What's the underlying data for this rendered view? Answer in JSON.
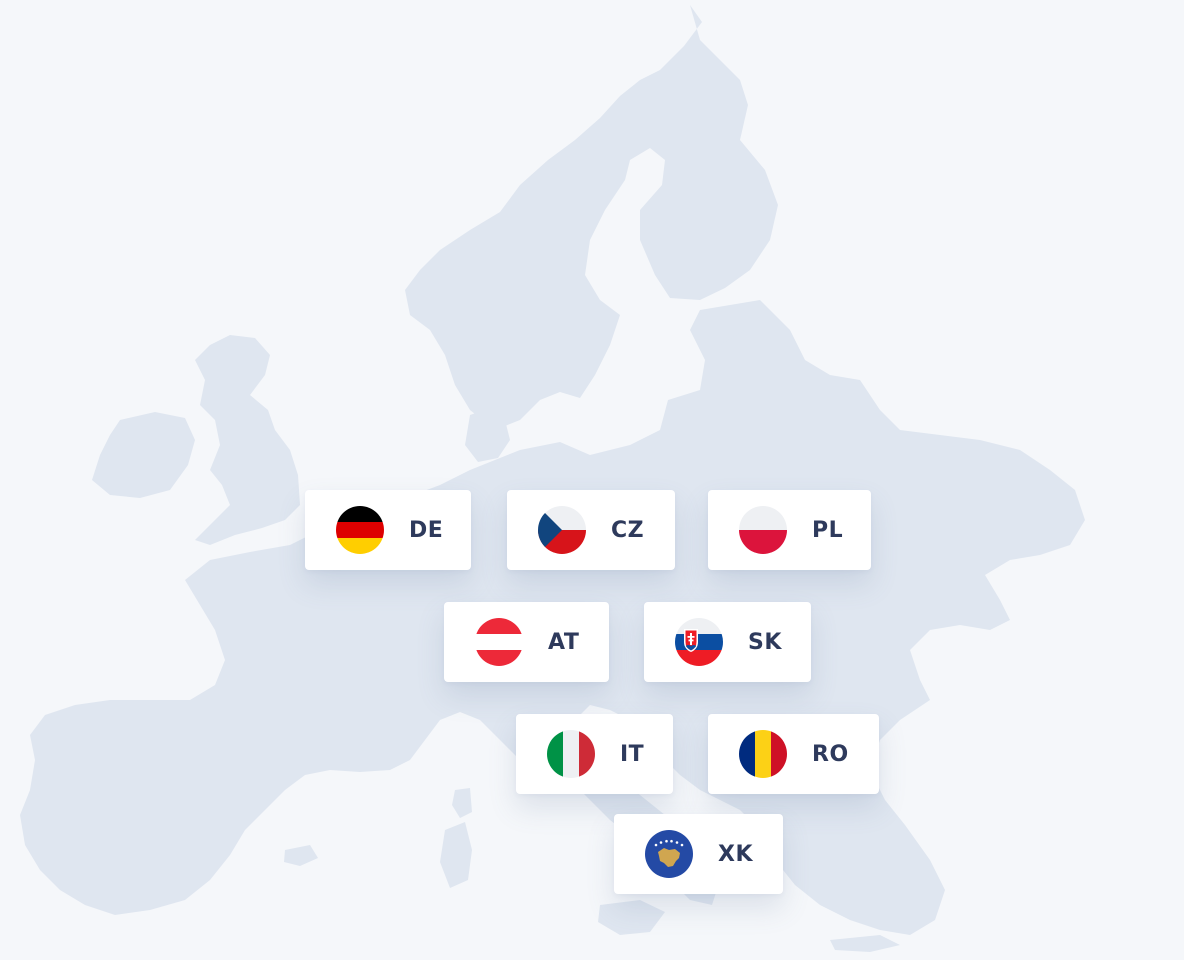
{
  "countries": [
    {
      "code": "DE",
      "flag_icon": "germany-flag-icon",
      "colors": [
        "#000000",
        "#dd0000",
        "#ffce00"
      ]
    },
    {
      "code": "CZ",
      "flag_icon": "czech-flag-icon",
      "colors": [
        "#ffffff",
        "#d7141a",
        "#11457e"
      ]
    },
    {
      "code": "PL",
      "flag_icon": "poland-flag-icon",
      "colors": [
        "#ffffff",
        "#dc143c"
      ]
    },
    {
      "code": "AT",
      "flag_icon": "austria-flag-icon",
      "colors": [
        "#ed2939",
        "#ffffff"
      ]
    },
    {
      "code": "SK",
      "flag_icon": "slovakia-flag-icon",
      "colors": [
        "#ffffff",
        "#0b4ea2",
        "#ee1c25"
      ]
    },
    {
      "code": "IT",
      "flag_icon": "italy-flag-icon",
      "colors": [
        "#009246",
        "#ffffff",
        "#ce2b37"
      ]
    },
    {
      "code": "RO",
      "flag_icon": "romania-flag-icon",
      "colors": [
        "#002b7f",
        "#fcd116",
        "#ce1126"
      ]
    },
    {
      "code": "XK",
      "flag_icon": "kosovo-flag-icon",
      "colors": [
        "#244aa5",
        "#d0a650",
        "#ffffff"
      ]
    }
  ],
  "map": {
    "region_icon": "europe-map",
    "land_color": "#dfe6f0",
    "background_color": "#f5f7fa"
  }
}
